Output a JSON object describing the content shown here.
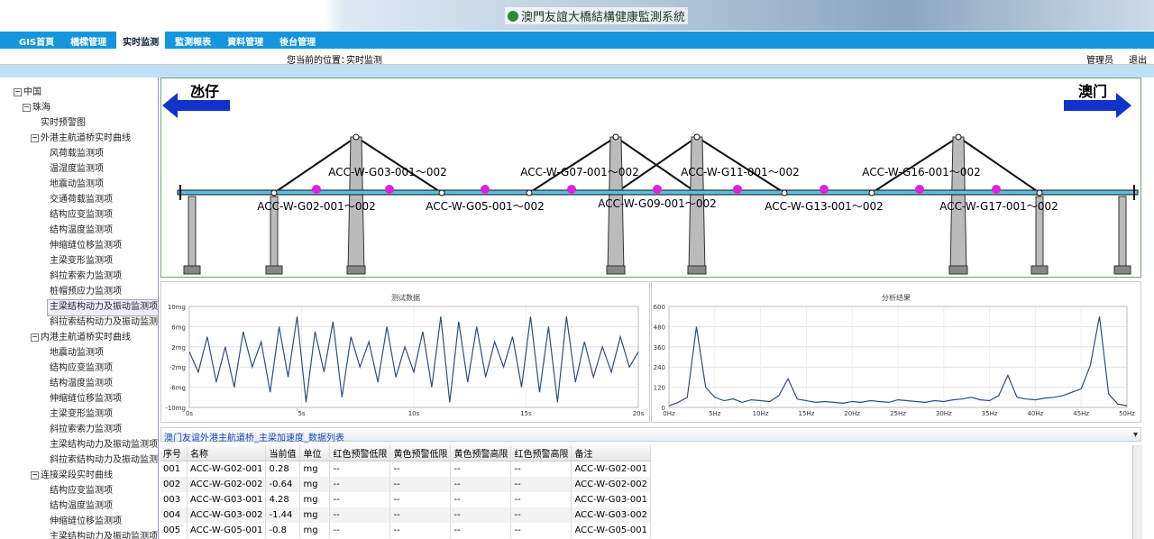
{
  "header": {
    "title": "澳門友誼大橋結構健康監測系統"
  },
  "nav": [
    "GIS首頁",
    "橋樑管理",
    "实时监测",
    "監測報表",
    "資料管理",
    "後台管理"
  ],
  "breadcrumb": {
    "label": "您当前的位置：",
    "current": "实时监测"
  },
  "user": {
    "name": "管理员",
    "logout": "退出"
  },
  "tree": {
    "label": "中国",
    "children": [
      {
        "label": "珠海",
        "children": [
          "实时预警图",
          {
            "label": "外港主航道桥实时曲线",
            "children": [
              "风荷载监测项",
              "温湿度监测项",
              "地震动监测项",
              "交通荷载监测项",
              "结构应变监测项",
              "结构温度监测项",
              "伸缩缝位移监测项",
              "主梁变形监测项",
              "斜拉索索力监测项",
              "桩帽预应力监测项",
              "主梁结构动力及振动监测项",
              "斜拉索结构动力及振动监测项"
            ]
          },
          {
            "label": "内港主航道桥实时曲线",
            "children": [
              "地震动监测项",
              "结构应变监测项",
              "结构温度监测项",
              "伸缩缝位移监测项",
              "主梁变形监测项",
              "斜拉索索力监测项",
              "主梁结构动力及振动监测项",
              "斜拉索结构动力及振动监测项"
            ]
          },
          {
            "label": "连接梁段实时曲线",
            "children": [
              "结构应变监测项",
              "结构温度监测项",
              "伸缩缝位移监测项",
              "主梁结构动力及振动监测项"
            ]
          }
        ]
      }
    ]
  },
  "bridge": {
    "left": "氹仔",
    "right": "澳门",
    "labels": [
      "ACC-W-G03-001～002",
      "ACC-W-G02-001～002",
      "ACC-W-G05-001～002",
      "ACC-W-G07-001～002",
      "ACC-W-G09-001～002",
      "ACC-W-G11-001～002",
      "ACC-W-G13-001～002",
      "ACC-W-G16-001～002",
      "ACC-W-G17-001～002"
    ]
  },
  "chart_data": [
    {
      "type": "line",
      "title": "测试数据",
      "color": "#2f4f7f",
      "grid": true,
      "x": [
        0,
        0.4,
        0.8,
        1.2,
        1.6,
        2,
        2.4,
        2.8,
        3.2,
        3.6,
        4,
        4.4,
        4.8,
        5.2,
        5.6,
        6,
        6.4,
        6.8,
        7.2,
        7.6,
        8,
        8.4,
        8.8,
        9.2,
        9.6,
        10,
        10.4,
        10.8,
        11.2,
        11.6,
        12,
        12.4,
        12.8,
        13.2,
        13.6,
        14,
        14.4,
        14.8,
        15.2,
        15.6,
        16,
        16.4,
        16.8,
        17.2,
        17.6,
        18,
        18.4,
        18.8,
        19.2,
        19.6,
        20
      ],
      "values": [
        1,
        -3,
        4,
        -5,
        2,
        -6,
        5,
        -2,
        3,
        -7,
        6,
        -4,
        8,
        -9,
        5,
        -3,
        7,
        -8,
        4,
        -2,
        3,
        -5,
        6,
        -4,
        2,
        -3,
        5,
        -6,
        8,
        -9,
        7,
        -5,
        6,
        -4,
        3,
        -2,
        4,
        -6,
        8,
        -7,
        6,
        -9,
        8,
        -5,
        3,
        -4,
        2,
        -3,
        4,
        -2,
        1
      ],
      "xlim": [
        0,
        20
      ],
      "xticks": [
        {
          "value": 0,
          "label": "0s"
        },
        {
          "value": 5,
          "label": "5s"
        },
        {
          "value": 10,
          "label": "10s"
        },
        {
          "value": 15,
          "label": "15s"
        },
        {
          "value": 20,
          "label": "20s"
        }
      ],
      "ylim": [
        -10,
        10
      ],
      "yticks": [
        {
          "value": 10,
          "label": "10mg"
        },
        {
          "value": 6,
          "label": "6mg"
        },
        {
          "value": 2,
          "label": "2mg"
        },
        {
          "value": -2,
          "label": "-2mg"
        },
        {
          "value": -6,
          "label": "-6mg"
        },
        {
          "value": -10,
          "label": "-10mg"
        }
      ]
    },
    {
      "type": "line",
      "title": "分析结果",
      "color": "#2f4f7f",
      "grid": true,
      "x": [
        0,
        1,
        2,
        3,
        4,
        5,
        6,
        7,
        8,
        9,
        10,
        11,
        12,
        13,
        14,
        15,
        16,
        17,
        18,
        19,
        20,
        21,
        22,
        23,
        24,
        25,
        26,
        27,
        28,
        29,
        30,
        31,
        32,
        33,
        34,
        35,
        36,
        37,
        38,
        39,
        40,
        41,
        42,
        43,
        44,
        45,
        46,
        47,
        48,
        49,
        50
      ],
      "values": [
        10,
        30,
        60,
        480,
        120,
        60,
        40,
        50,
        30,
        45,
        40,
        35,
        70,
        170,
        50,
        40,
        30,
        35,
        30,
        25,
        35,
        30,
        40,
        35,
        30,
        45,
        40,
        35,
        30,
        40,
        35,
        45,
        50,
        60,
        45,
        40,
        70,
        190,
        60,
        50,
        45,
        55,
        60,
        70,
        90,
        110,
        250,
        540,
        80,
        20,
        10
      ],
      "xlim": [
        0,
        50
      ],
      "xticks": [
        {
          "value": 0,
          "label": "0Hz"
        },
        {
          "value": 5,
          "label": "5Hz"
        },
        {
          "value": 10,
          "label": "10Hz"
        },
        {
          "value": 15,
          "label": "15Hz"
        },
        {
          "value": 20,
          "label": "20Hz"
        },
        {
          "value": 25,
          "label": "25Hz"
        },
        {
          "value": 30,
          "label": "30Hz"
        },
        {
          "value": 35,
          "label": "35Hz"
        },
        {
          "value": 40,
          "label": "40Hz"
        },
        {
          "value": 45,
          "label": "45Hz"
        },
        {
          "value": 50,
          "label": "50Hz"
        }
      ],
      "ylim": [
        0,
        600
      ],
      "yticks": [
        0,
        120,
        240,
        360,
        480,
        600
      ]
    }
  ],
  "table": {
    "title": "澳门友谊外港主航道桥_主梁加速度_数据列表",
    "columns": [
      "序号",
      "名称",
      "当前值",
      "单位",
      "红色预警低限",
      "黄色预警低限",
      "黄色预警高限",
      "红色预警高限",
      "备注"
    ],
    "rows": [
      [
        "001",
        "ACC-W-G02-001",
        0.28,
        "mg",
        "--",
        "--",
        "--",
        "--",
        "ACC-W-G02-001"
      ],
      [
        "002",
        "ACC-W-G02-002",
        -0.64,
        "mg",
        "--",
        "--",
        "--",
        "--",
        "ACC-W-G02-002"
      ],
      [
        "003",
        "ACC-W-G03-001",
        4.28,
        "mg",
        "--",
        "--",
        "--",
        "--",
        "ACC-W-G03-001"
      ],
      [
        "004",
        "ACC-W-G03-002",
        -1.44,
        "mg",
        "--",
        "--",
        "--",
        "--",
        "ACC-W-G03-002"
      ],
      [
        "005",
        "ACC-W-G05-001",
        -0.8,
        "mg",
        "--",
        "--",
        "--",
        "--",
        "ACC-W-G05-001"
      ]
    ]
  }
}
